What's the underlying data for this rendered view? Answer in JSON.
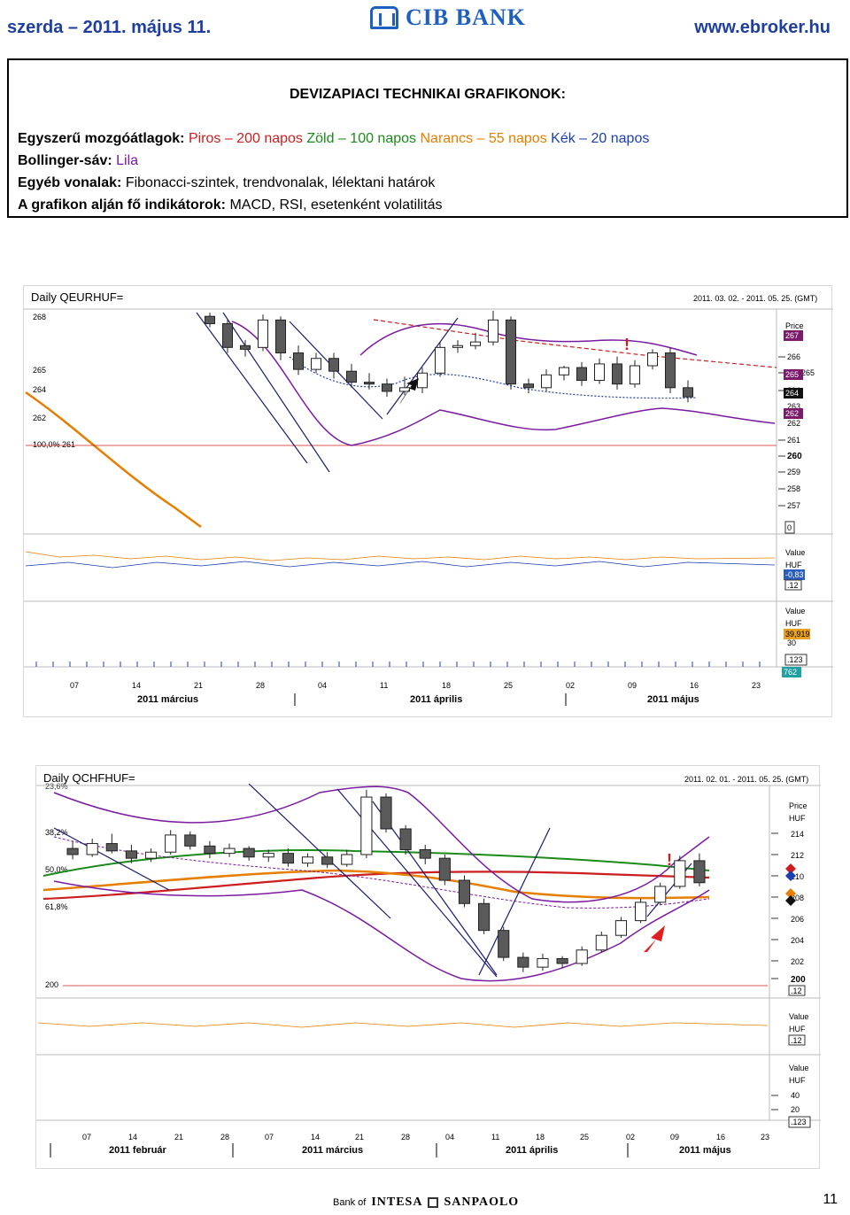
{
  "header": {
    "date": "szerda – 2011. május 11.",
    "bank": "CIB BANK",
    "url": "www.ebroker.hu"
  },
  "info": {
    "title": "DEVIZAPIACI TECHNIKAI GRAFIKONOK:",
    "ma_label": "Egyszerű mozgóátlagok:",
    "ma_red": "Piros – 200 napos",
    "ma_green": "Zöld – 100 napos",
    "ma_orange": "Narancs – 55 napos",
    "ma_blue": "Kék – 20 napos",
    "bb_label": "Bollinger-sáv:",
    "bb_value": "Lila",
    "other_label": "Egyéb vonalak:",
    "other_value": "Fibonacci-szintek, trendvonalak, lélektani határok",
    "ind_label_a": "A grafikon alján",
    "ind_label_b": "fő indikátorok:",
    "ind_value": "MACD, RSI, esetenként volatilitás"
  },
  "colors": {
    "ma200": "#cc1e1e",
    "ma100": "#1a8a1a",
    "ma55": "#e67e00",
    "ma20": "#1a3fb0",
    "bollinger": "#7a1aa0",
    "trend": "#1a1a6e",
    "header_blue": "#1f3f9f"
  },
  "charts": [
    {
      "title": "Daily QEURHUF=",
      "range": "2011. 03. 02. - 2011. 05. 25. (GMT)",
      "price_label": "Price",
      "left_labels": [
        "268",
        "265",
        "264",
        "262",
        "100,0% 261"
      ],
      "right_ticks": [
        "266",
        "265",
        "264",
        "263",
        "262",
        "261",
        "260",
        "259",
        "258",
        "257"
      ],
      "right_tags": [
        "267",
        "265",
        "264",
        "262"
      ],
      "zero_tag": "0",
      "macd_label": "Value",
      "macd_unit": "HUF",
      "macd_tag": "-0,83",
      "macd_tag2": ".12",
      "rsi_label": "Value",
      "rsi_unit": "HUF",
      "rsi_tag": "39,919",
      "rsi_tick": "30",
      "rsi_tag2": ".123",
      "rsi_tag3": "762",
      "x_days": [
        "07",
        "14",
        "21",
        "28",
        "04",
        "11",
        "18",
        "25",
        "02",
        "09",
        "16",
        "23"
      ],
      "x_months": [
        "2011 március",
        "2011 április",
        "2011 május"
      ],
      "chart_data": {
        "type": "candlestick",
        "ylim": [
          256.5,
          268.5
        ],
        "candles": [
          {
            "o": 268.2,
            "h": 268.4,
            "c": 267.8,
            "l": 267.6
          },
          {
            "o": 267.8,
            "h": 268.0,
            "c": 266.5,
            "l": 266.2
          },
          {
            "o": 266.6,
            "h": 266.9,
            "c": 266.4,
            "l": 266.0
          },
          {
            "o": 266.5,
            "h": 268.3,
            "c": 268.0,
            "l": 266.3
          },
          {
            "o": 268.0,
            "h": 268.2,
            "c": 266.2,
            "l": 265.8
          },
          {
            "o": 266.2,
            "h": 266.6,
            "c": 265.3,
            "l": 265.0
          },
          {
            "o": 265.3,
            "h": 266.2,
            "c": 265.9,
            "l": 265.1
          },
          {
            "o": 265.9,
            "h": 266.2,
            "c": 265.2,
            "l": 264.8
          },
          {
            "o": 265.2,
            "h": 265.6,
            "c": 264.6,
            "l": 264.3
          },
          {
            "o": 264.6,
            "h": 265.1,
            "c": 264.5,
            "l": 264.2
          },
          {
            "o": 264.5,
            "h": 264.8,
            "c": 264.1,
            "l": 263.8
          },
          {
            "o": 264.1,
            "h": 264.9,
            "c": 264.3,
            "l": 263.9
          },
          {
            "o": 264.3,
            "h": 265.4,
            "c": 265.1,
            "l": 264.0
          },
          {
            "o": 265.1,
            "h": 266.8,
            "c": 266.5,
            "l": 264.9
          },
          {
            "o": 266.5,
            "h": 266.9,
            "c": 266.6,
            "l": 266.2
          },
          {
            "o": 266.6,
            "h": 267.3,
            "c": 266.8,
            "l": 266.4
          },
          {
            "o": 266.8,
            "h": 268.5,
            "c": 268.0,
            "l": 266.6
          },
          {
            "o": 268.0,
            "h": 268.2,
            "c": 264.5,
            "l": 264.2
          },
          {
            "o": 264.5,
            "h": 264.8,
            "c": 264.3,
            "l": 264.0
          },
          {
            "o": 264.3,
            "h": 265.3,
            "c": 265.0,
            "l": 264.1
          },
          {
            "o": 265.0,
            "h": 265.5,
            "c": 265.4,
            "l": 264.7
          },
          {
            "o": 265.4,
            "h": 265.7,
            "c": 264.7,
            "l": 264.4
          },
          {
            "o": 264.7,
            "h": 265.9,
            "c": 265.6,
            "l": 264.5
          },
          {
            "o": 265.6,
            "h": 266.0,
            "c": 264.5,
            "l": 264.2
          },
          {
            "o": 264.5,
            "h": 265.8,
            "c": 265.5,
            "l": 264.3
          },
          {
            "o": 265.5,
            "h": 266.4,
            "c": 266.2,
            "l": 265.3
          },
          {
            "o": 266.2,
            "h": 266.5,
            "c": 264.3,
            "l": 264.0
          },
          {
            "o": 264.3,
            "h": 264.7,
            "c": 263.8,
            "l": 263.5
          }
        ]
      }
    },
    {
      "title": "Daily QCHFHUF=",
      "range": "2011. 02. 01. - 2011. 05. 25. (GMT)",
      "fib_labels": [
        "23,6%",
        "38,2%",
        "50,0%",
        "61,8%"
      ],
      "level_label": "200",
      "price_label": "Price",
      "price_unit": "HUF",
      "right_ticks": [
        "214",
        "212",
        "210",
        "208",
        "206",
        "204",
        "202",
        "200"
      ],
      "tag1": ".12",
      "macd_label": "Value",
      "macd_unit": "HUF",
      "macd_tag": ".12",
      "rsi_label": "Value",
      "rsi_unit": "HUF",
      "rsi_ticks": [
        "40",
        "20"
      ],
      "rsi_tag": ".123",
      "x_days": [
        "07",
        "14",
        "21",
        "28",
        "07",
        "14",
        "21",
        "28",
        "04",
        "11",
        "18",
        "25",
        "02",
        "09",
        "16",
        "23"
      ],
      "x_months": [
        "2011 február",
        "2011 március",
        "2011 április",
        "2011 május"
      ],
      "chart_data": {
        "type": "candlestick",
        "ylim": [
          199.5,
          216
        ],
        "candles": [
          {
            "o": 211.0,
            "h": 211.6,
            "c": 210.5,
            "l": 210.1
          },
          {
            "o": 210.5,
            "h": 211.8,
            "c": 211.4,
            "l": 210.3
          },
          {
            "o": 211.4,
            "h": 212.2,
            "c": 210.8,
            "l": 210.6
          },
          {
            "o": 210.8,
            "h": 211.3,
            "c": 210.2,
            "l": 209.8
          },
          {
            "o": 210.2,
            "h": 211.0,
            "c": 210.7,
            "l": 209.9
          },
          {
            "o": 210.7,
            "h": 212.5,
            "c": 212.1,
            "l": 210.5
          },
          {
            "o": 212.1,
            "h": 212.4,
            "c": 211.2,
            "l": 210.9
          },
          {
            "o": 211.2,
            "h": 211.6,
            "c": 210.6,
            "l": 210.2
          },
          {
            "o": 210.6,
            "h": 211.4,
            "c": 211.0,
            "l": 210.3
          },
          {
            "o": 211.0,
            "h": 211.2,
            "c": 210.3,
            "l": 210.0
          },
          {
            "o": 210.3,
            "h": 210.9,
            "c": 210.6,
            "l": 209.9
          },
          {
            "o": 210.6,
            "h": 211.0,
            "c": 209.8,
            "l": 209.5
          },
          {
            "o": 209.8,
            "h": 210.6,
            "c": 210.3,
            "l": 209.5
          },
          {
            "o": 210.3,
            "h": 210.7,
            "c": 209.7,
            "l": 209.4
          },
          {
            "o": 209.7,
            "h": 210.9,
            "c": 210.5,
            "l": 209.5
          },
          {
            "o": 210.5,
            "h": 215.8,
            "c": 215.2,
            "l": 210.2
          },
          {
            "o": 215.2,
            "h": 215.5,
            "c": 212.6,
            "l": 212.3
          },
          {
            "o": 212.6,
            "h": 212.9,
            "c": 210.9,
            "l": 210.5
          },
          {
            "o": 210.9,
            "h": 211.3,
            "c": 210.2,
            "l": 209.7
          },
          {
            "o": 210.2,
            "h": 210.5,
            "c": 208.4,
            "l": 208.0
          },
          {
            "o": 208.4,
            "h": 208.8,
            "c": 206.5,
            "l": 206.2
          },
          {
            "o": 206.5,
            "h": 206.9,
            "c": 204.3,
            "l": 204.0
          },
          {
            "o": 204.3,
            "h": 204.6,
            "c": 202.1,
            "l": 201.8
          },
          {
            "o": 202.1,
            "h": 202.5,
            "c": 201.3,
            "l": 200.9
          },
          {
            "o": 201.3,
            "h": 202.4,
            "c": 202.0,
            "l": 201.0
          },
          {
            "o": 202.0,
            "h": 202.2,
            "c": 201.6,
            "l": 201.2
          },
          {
            "o": 201.6,
            "h": 203.0,
            "c": 202.7,
            "l": 201.4
          },
          {
            "o": 202.7,
            "h": 204.2,
            "c": 203.9,
            "l": 202.5
          },
          {
            "o": 203.9,
            "h": 205.4,
            "c": 205.1,
            "l": 203.7
          },
          {
            "o": 205.1,
            "h": 206.9,
            "c": 206.6,
            "l": 204.9
          },
          {
            "o": 206.6,
            "h": 208.2,
            "c": 207.9,
            "l": 206.4
          },
          {
            "o": 207.9,
            "h": 210.4,
            "c": 210.0,
            "l": 207.7
          },
          {
            "o": 210.0,
            "h": 210.6,
            "c": 208.2,
            "l": 207.9
          }
        ]
      }
    }
  ],
  "footer": {
    "bank_of": "Bank of",
    "intesa": "INTESA",
    "sanpaolo": "SANPAOLO",
    "page": "11"
  }
}
